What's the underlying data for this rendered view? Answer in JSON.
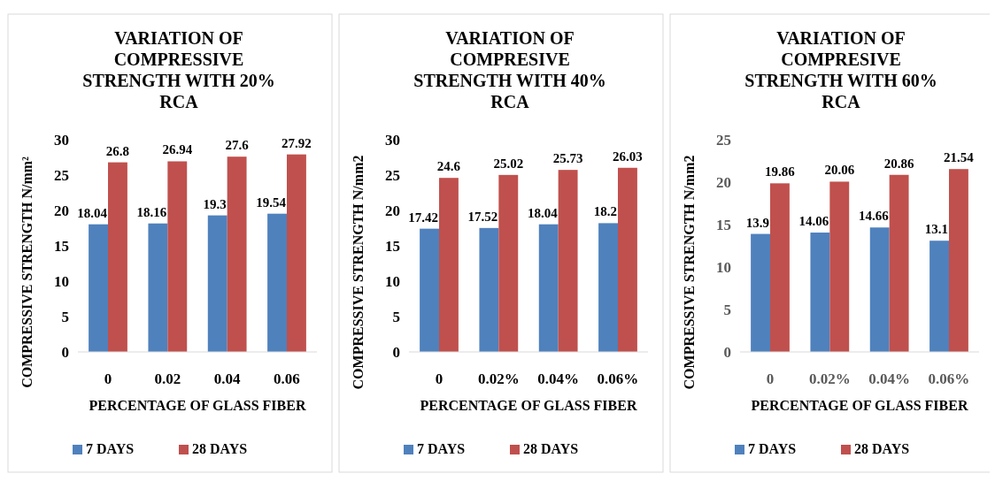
{
  "chart_data": [
    {
      "type": "bar",
      "title": "VARIATION OF COMPRESSIVE STRENGTH WITH 20% RCA",
      "xlabel": "PERCENTAGE OF GLASS FIBER",
      "ylabel": "COMPRESSIVE STRENGTH N/mm²",
      "categories": [
        "0",
        "0.02",
        "0.04",
        "0.06"
      ],
      "series": [
        {
          "name": "7 DAYS",
          "color": "#4f81bd",
          "values": [
            18.04,
            18.16,
            19.3,
            19.54
          ]
        },
        {
          "name": "28 DAYS",
          "color": "#c0504d",
          "values": [
            26.8,
            26.94,
            27.6,
            27.92
          ]
        }
      ],
      "ylim": [
        0,
        30
      ],
      "yticks": [
        0,
        5,
        10,
        15,
        20,
        25,
        30
      ],
      "data_labels": true,
      "legend": "bottom",
      "grid": false
    },
    {
      "type": "bar",
      "title": "VARIATION OF COMPRESIVE STRENGTH WITH 40% RCA",
      "xlabel": "PERCENTAGE OF GLASS FIBER",
      "ylabel": "COMPRESSIVE STRENGTH N/mm2",
      "categories": [
        "0",
        "0.02%",
        "0.04%",
        "0.06%"
      ],
      "series": [
        {
          "name": "7 DAYS",
          "color": "#4f81bd",
          "values": [
            17.42,
            17.52,
            18.04,
            18.2
          ]
        },
        {
          "name": "28 DAYS",
          "color": "#c0504d",
          "values": [
            24.6,
            25.02,
            25.73,
            26.03
          ]
        }
      ],
      "ylim": [
        0,
        30
      ],
      "yticks": [
        0,
        5,
        10,
        15,
        20,
        25,
        30
      ],
      "data_labels": true,
      "legend": "bottom",
      "grid": false
    },
    {
      "type": "bar",
      "title": "VARIATION OF COMPRESIVE STRENGTH WITH 60% RCA",
      "xlabel": "PERCENTAGE OF GLASS FIBER",
      "ylabel": "COMPRESSIVE STRENGTH N/mm2",
      "categories": [
        "0",
        "0.02%",
        "0.04%",
        "0.06%"
      ],
      "series": [
        {
          "name": "7 DAYS",
          "color": "#4f81bd",
          "values": [
            13.9,
            14.06,
            14.66,
            13.1
          ]
        },
        {
          "name": "28 DAYS",
          "color": "#c0504d",
          "values": [
            19.86,
            20.06,
            20.86,
            21.54
          ]
        }
      ],
      "ylim": [
        0,
        25
      ],
      "yticks": [
        0,
        5,
        10,
        15,
        20,
        25
      ],
      "data_labels": true,
      "legend": "bottom",
      "grid": false
    }
  ]
}
